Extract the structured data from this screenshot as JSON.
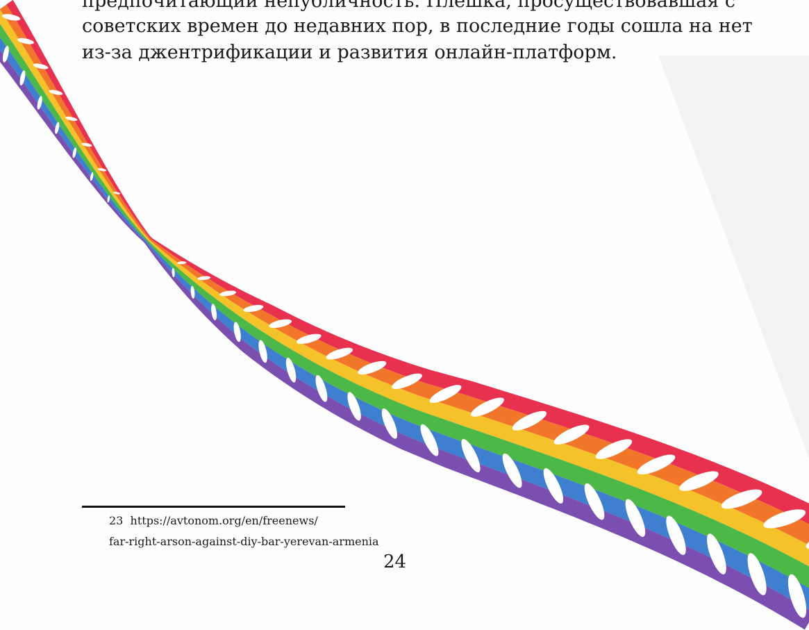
{
  "body": {
    "lines": [
      "предпочитающий непубличность. Плешка, просуществовавшая с",
      "советских времен до недавних пор, в последние годы сошла на нет",
      "из-за джентрификации и развития онлайн-платформ."
    ]
  },
  "footnote": {
    "number": "23",
    "lines": [
      "https://avtonom.org/en/freenews/",
      "far-right-arson-against-diy-bar-yerevan-armenia"
    ]
  },
  "page_number": "24"
}
